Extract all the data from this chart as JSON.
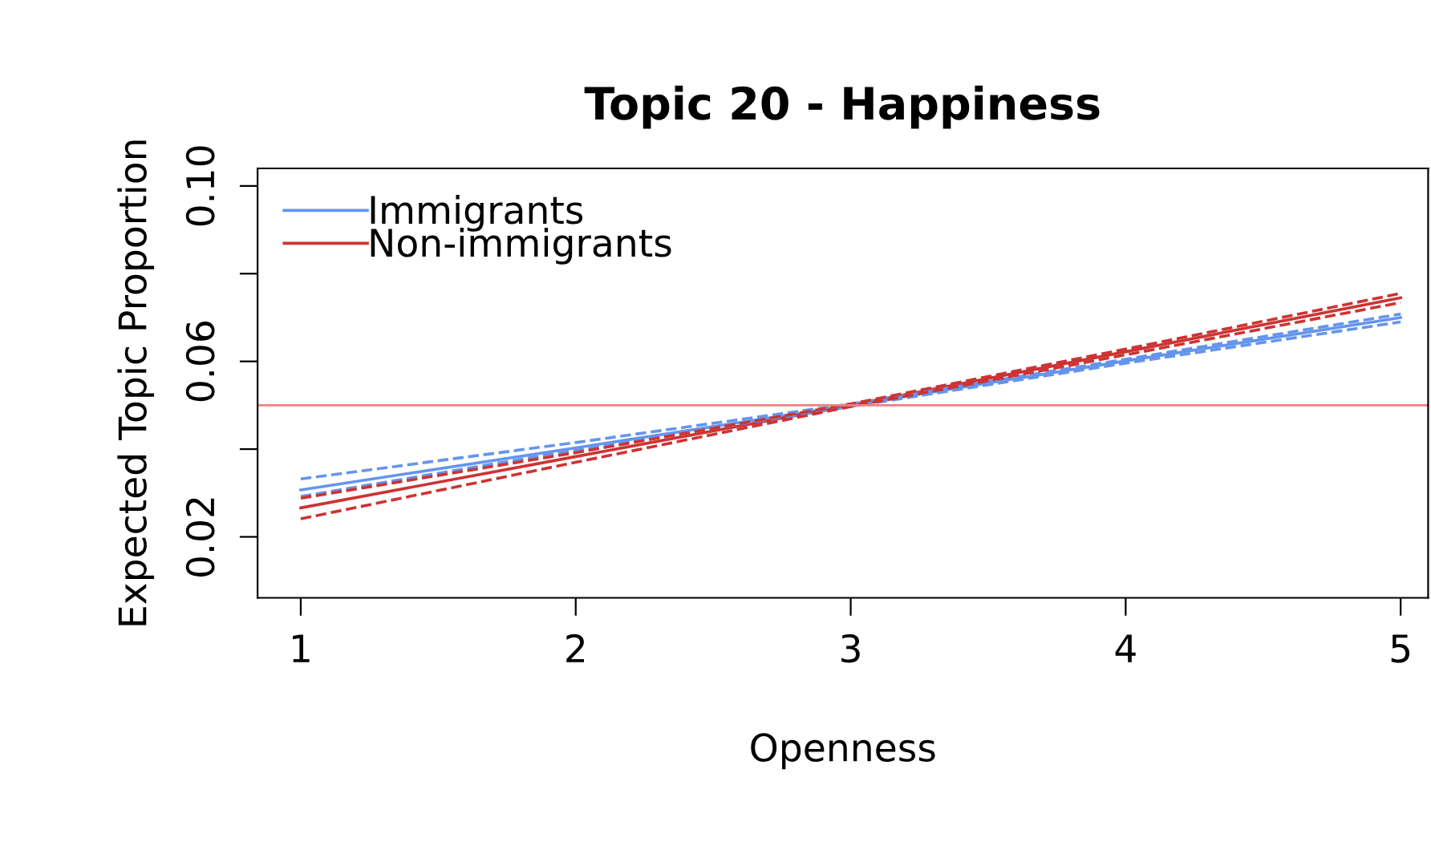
{
  "chart_data": {
    "type": "line",
    "title": "Topic 20 - Happiness",
    "xlabel": "Openness",
    "ylabel": "Expected Topic Proportion",
    "x": [
      1,
      2,
      3,
      4,
      5
    ],
    "series": [
      {
        "name": "Immigrants",
        "color": "#6495ed",
        "values": [
          0.0307,
          0.0403,
          0.05,
          0.0601,
          0.07
        ]
      },
      {
        "name": "Non-immigrants",
        "color": "#cd3333",
        "values": [
          0.0266,
          0.0383,
          0.05,
          0.0622,
          0.0745
        ]
      },
      {
        "color": "#6495ed",
        "line_style": "dashed",
        "values": [
          0.0292,
          0.0398,
          0.0497,
          0.0596,
          0.069
        ]
      },
      {
        "color": "#6495ed",
        "line_style": "dashed",
        "values": [
          0.0332,
          0.0415,
          0.0503,
          0.0605,
          0.0708
        ]
      },
      {
        "color": "#cd3333",
        "line_style": "dashed",
        "values": [
          0.0241,
          0.037,
          0.0497,
          0.0615,
          0.0734
        ]
      },
      {
        "color": "#cd3333",
        "line_style": "dashed",
        "values": [
          0.0288,
          0.0392,
          0.0503,
          0.0628,
          0.0755
        ]
      }
    ],
    "xlim": [
      0.843,
      5.1
    ],
    "ylim": [
      0.0061,
      0.104
    ],
    "xticks": [
      1,
      2,
      3,
      4,
      5
    ],
    "yticks": [
      {
        "value": 0.02,
        "label": "0.02"
      },
      {
        "value": 0.04,
        "label": null
      },
      {
        "value": 0.06,
        "label": "0.06"
      },
      {
        "value": 0.08,
        "label": null
      },
      {
        "value": 0.1,
        "label": "0.10"
      }
    ],
    "ref_lines": [
      {
        "axis": "y",
        "value": 0.05,
        "color": "#f08080"
      }
    ],
    "legend": "top left",
    "line_style": "solid",
    "grid": false
  }
}
